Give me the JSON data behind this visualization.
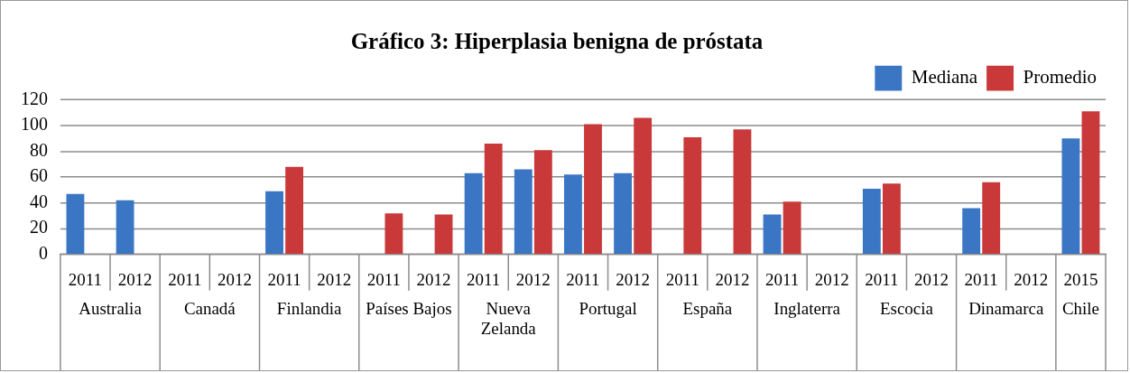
{
  "chart_data": {
    "type": "bar",
    "title": "Gráfico 3: Hiperplasia benigna de próstata",
    "categories": [
      "2011",
      "2012",
      "2011",
      "2012",
      "2011",
      "2012",
      "2011",
      "2012",
      "2011",
      "2012",
      "2011",
      "2012",
      "2011",
      "2012",
      "2011",
      "2012",
      "2011",
      "2012",
      "2011",
      "2012",
      "2015"
    ],
    "series": [
      {
        "name": "Mediana",
        "color": "#3a76c4",
        "values": [
          47,
          42,
          null,
          null,
          49,
          null,
          null,
          null,
          63,
          66,
          62,
          63,
          null,
          null,
          31,
          null,
          51,
          null,
          36,
          null,
          90
        ]
      },
      {
        "name": "Promedio",
        "color": "#c9393a",
        "values": [
          null,
          null,
          null,
          null,
          68,
          null,
          32,
          31,
          86,
          81,
          101,
          106,
          91,
          97,
          41,
          null,
          55,
          null,
          56,
          null,
          111
        ]
      }
    ],
    "annotations": [
      "Australia",
      "Canadá",
      "Finlandia",
      "Países Bajos",
      "Nueva Zelanda",
      "Portugal",
      "España",
      "Inglaterra",
      "Escocia",
      "Dinamarca",
      "Chile"
    ],
    "ylim": [
      0,
      120
    ],
    "yticks": [
      0,
      20,
      40,
      60,
      80,
      100,
      120
    ],
    "grid": "y",
    "legend": "top right"
  }
}
